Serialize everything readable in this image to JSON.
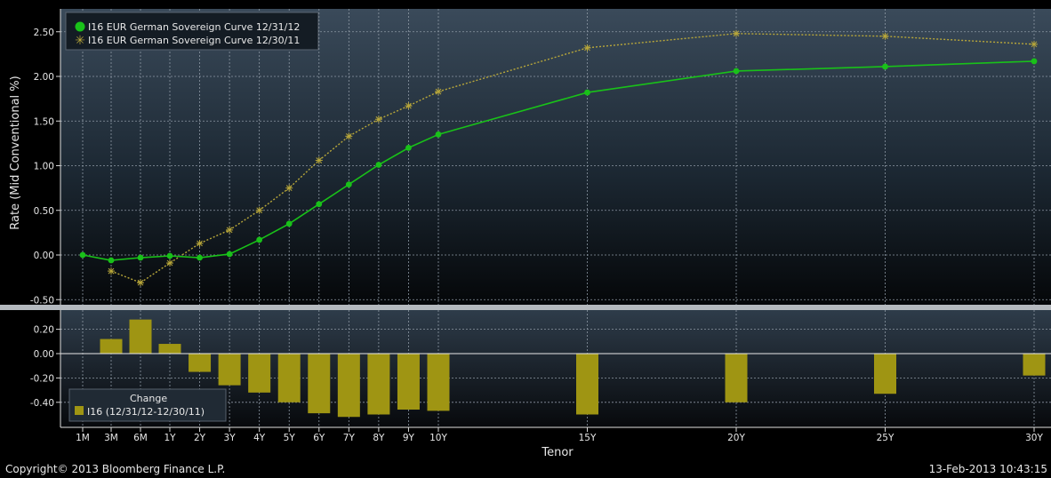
{
  "chart_data": [
    {
      "type": "line",
      "ylabel": "Rate (Mid Conventional %)",
      "ylim": [
        -0.52,
        2.6
      ],
      "yticks": [
        "2.50",
        "2.00",
        "1.50",
        "1.00",
        "0.50",
        "0.00",
        "-0.50"
      ],
      "grid": true,
      "legend_position": "top-left",
      "categories": [
        "1M",
        "3M",
        "6M",
        "1Y",
        "2Y",
        "3Y",
        "4Y",
        "5Y",
        "6Y",
        "7Y",
        "8Y",
        "9Y",
        "10Y",
        "15Y",
        "20Y",
        "25Y",
        "30Y"
      ],
      "series": [
        {
          "name": "I16 EUR German Sovereign Curve 12/31/12",
          "color": "#19c119",
          "marker": "circle",
          "values": [
            0.0,
            -0.06,
            -0.03,
            -0.01,
            -0.03,
            0.01,
            0.17,
            0.35,
            0.57,
            0.79,
            1.01,
            1.2,
            1.35,
            1.82,
            2.06,
            2.11,
            2.17
          ]
        },
        {
          "name": "I16 EUR German Sovereign Curve 12/30/11",
          "color": "#b8a73a",
          "marker": "asterisk",
          "values": [
            null,
            -0.18,
            -0.31,
            -0.09,
            0.13,
            0.28,
            0.5,
            0.75,
            1.06,
            1.33,
            1.52,
            1.67,
            1.83,
            2.32,
            2.48,
            2.45,
            2.36
          ]
        }
      ]
    },
    {
      "type": "bar",
      "title": "Change",
      "xlabel": "Tenor",
      "ylim": [
        -0.55,
        0.3
      ],
      "yticks": [
        "0.20",
        "0.00",
        "-0.20",
        "-0.40"
      ],
      "grid": true,
      "legend_position": "bottom-left",
      "categories": [
        "1M",
        "3M",
        "6M",
        "1Y",
        "2Y",
        "3Y",
        "4Y",
        "5Y",
        "6Y",
        "7Y",
        "8Y",
        "9Y",
        "10Y",
        "15Y",
        "20Y",
        "25Y",
        "30Y"
      ],
      "series": [
        {
          "name": "I16 (12/31/12-12/30/11)",
          "color": "#9f9513",
          "values": [
            null,
            0.12,
            0.28,
            0.08,
            -0.15,
            -0.26,
            -0.32,
            -0.4,
            -0.49,
            -0.52,
            -0.5,
            -0.46,
            -0.47,
            -0.5,
            -0.4,
            -0.33,
            -0.18
          ]
        }
      ]
    }
  ],
  "footer": {
    "copyright": "Copyright© 2013 Bloomberg Finance L.P.",
    "timestamp": "13-Feb-2013 10:43:15"
  }
}
